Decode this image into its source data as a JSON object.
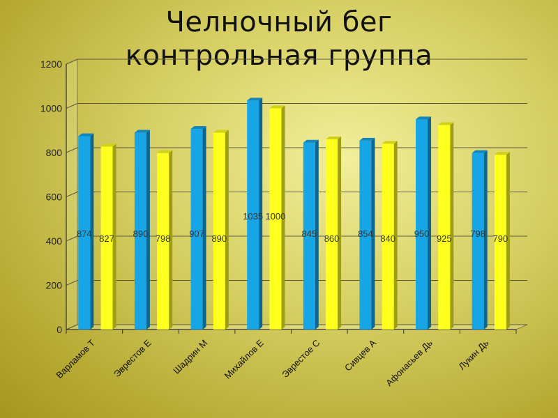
{
  "title_line1": "Челночный бег",
  "title_line2": "контрольная группа",
  "colors": {
    "series_a": "#17a5e6",
    "series_b": "#ffff1e",
    "axis": "#333333",
    "grid": "#5d5a3a"
  },
  "chart_data": {
    "type": "bar",
    "categories": [
      "Варламов Т",
      "Эврестов Е",
      "Шадрин М",
      "Михайлов Е",
      "Эврестое С",
      "Сивцев А",
      "Афонасьев Дь",
      "Лукин Дь"
    ],
    "series": [
      {
        "values": [
          874,
          890,
          907,
          1035,
          845,
          854,
          950,
          798
        ]
      },
      {
        "values": [
          827,
          798,
          890,
          1000,
          860,
          840,
          925,
          790
        ]
      }
    ],
    "ylim": [
      0,
      1200
    ],
    "yticks": [
      0,
      200,
      400,
      600,
      800,
      1000,
      1200
    ],
    "grid": true,
    "xlabel": "",
    "ylabel": ""
  }
}
